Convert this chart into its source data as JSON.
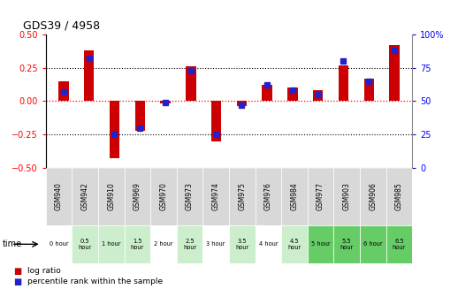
{
  "title": "GDS39 / 4958",
  "samples": [
    "GSM940",
    "GSM942",
    "GSM910",
    "GSM969",
    "GSM970",
    "GSM973",
    "GSM974",
    "GSM975",
    "GSM976",
    "GSM984",
    "GSM977",
    "GSM903",
    "GSM906",
    "GSM985"
  ],
  "time_labels": [
    "0 hour",
    "0.5\nhour",
    "1 hour",
    "1.5\nhour",
    "2 hour",
    "2.5\nhour",
    "3 hour",
    "3.5\nhour",
    "4 hour",
    "4.5\nhour",
    "5 hour",
    "5.5\nhour",
    "6 hour",
    "6.5\nhour"
  ],
  "log_ratio": [
    0.15,
    0.38,
    -0.43,
    -0.22,
    -0.02,
    0.26,
    -0.3,
    -0.04,
    0.12,
    0.1,
    0.08,
    0.27,
    0.17,
    0.42
  ],
  "percentile": [
    57,
    82,
    25,
    30,
    49,
    73,
    25,
    47,
    62,
    58,
    55,
    80,
    65,
    88
  ],
  "ylim": [
    -0.5,
    0.5
  ],
  "y2lim": [
    0,
    100
  ],
  "yticks": [
    -0.5,
    -0.25,
    0,
    0.25,
    0.5
  ],
  "y2ticks": [
    0,
    25,
    50,
    75,
    100
  ],
  "hlines_dotted_gray": [
    -0.25,
    0.25
  ],
  "bar_color_red": "#cc0000",
  "bar_color_blue": "#2222cc",
  "bg_color_chart": "#ffffff",
  "sample_bg": "#d8d8d8",
  "time_colors": [
    "#ffffff",
    "#cceecc",
    "#cceecc",
    "#cceecc",
    "#ffffff",
    "#cceecc",
    "#ffffff",
    "#cceecc",
    "#ffffff",
    "#cceecc",
    "#66cc66",
    "#66cc66",
    "#66cc66",
    "#66cc66"
  ],
  "legend_red_label": "log ratio",
  "legend_blue_label": "percentile rank within the sample",
  "bar_width": 0.4,
  "figsize": [
    5.18,
    3.27
  ],
  "dpi": 100
}
